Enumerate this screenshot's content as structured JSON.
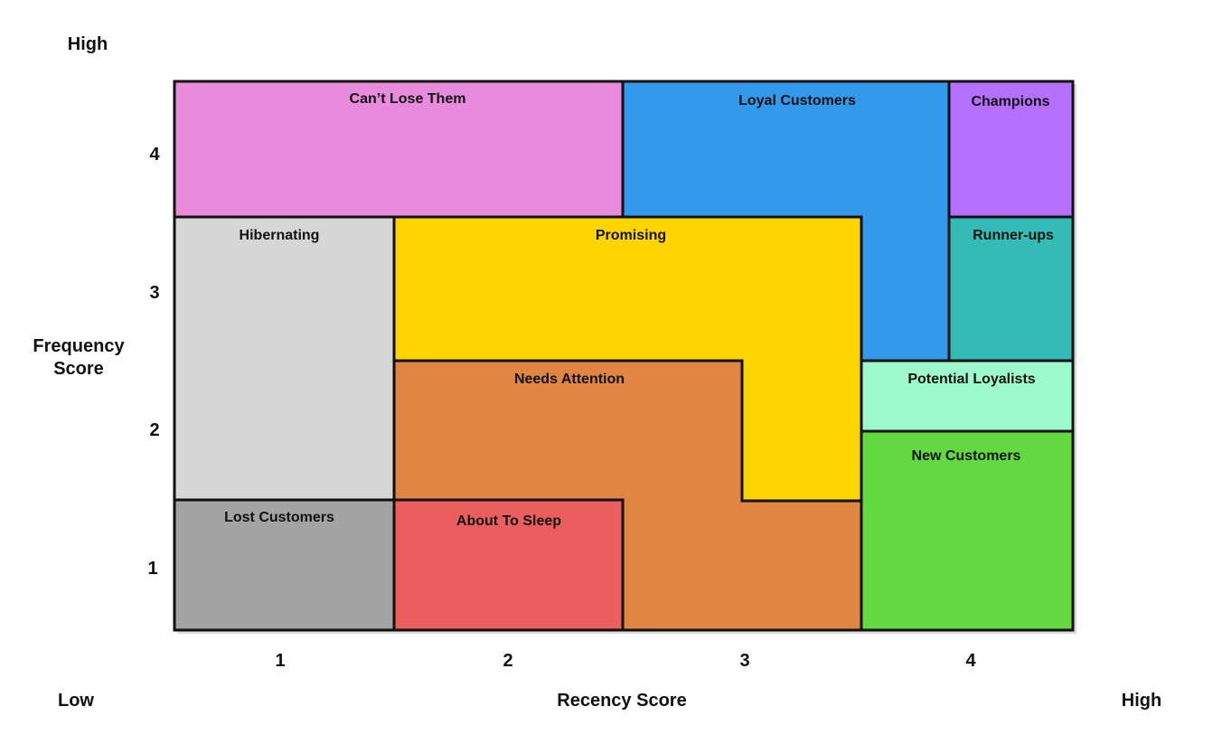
{
  "axes": {
    "y_title_line1": "Frequency",
    "y_title_line2": "Score",
    "x_title": "Recency Score",
    "y_high": "High",
    "x_low": "Low",
    "x_high": "High",
    "x_ticks": [
      "1",
      "2",
      "3",
      "4"
    ],
    "y_ticks": [
      "4",
      "3",
      "2",
      "1"
    ]
  },
  "segments": {
    "cant_lose_them": {
      "label": "Can’t Lose Them",
      "color": "#E88BDC"
    },
    "loyal_customers": {
      "label": "Loyal Customers",
      "color": "#3399EB"
    },
    "champions": {
      "label": "Champions",
      "color": "#B570FF"
    },
    "hibernating": {
      "label": "Hibernating",
      "color": "#D6D6D6"
    },
    "promising": {
      "label": "Promising",
      "color": "#FFD500"
    },
    "runner_ups": {
      "label": "Runner-ups",
      "color": "#33BBB5"
    },
    "needs_attention": {
      "label": "Needs Attention",
      "color": "#E08542"
    },
    "potential_loyalists": {
      "label": "Potential Loyalists",
      "color": "#9EFACC"
    },
    "new_customers": {
      "label": "New Customers",
      "color": "#63D940"
    },
    "lost_customers": {
      "label": "Lost Customers",
      "color": "#A3A3A3"
    },
    "about_to_sleep": {
      "label": "About To Sleep",
      "color": "#EB5E5E"
    }
  }
}
